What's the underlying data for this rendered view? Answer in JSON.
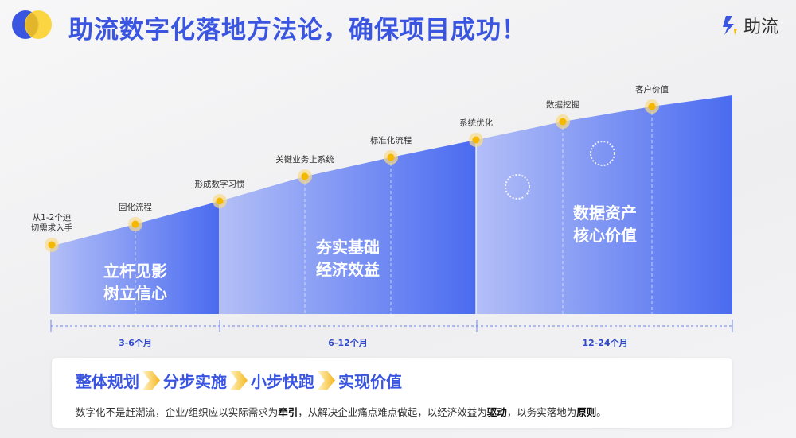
{
  "header": {
    "title": "助流数字化落地方法论，确保项目成功！",
    "brand": "助流"
  },
  "milestones": [
    {
      "label": "从1-2个迫\n切需求入手"
    },
    {
      "label": "固化流程"
    },
    {
      "label": "形成数字习惯"
    },
    {
      "label": "关键业务上系统"
    },
    {
      "label": "标准化流程"
    },
    {
      "label": "系统优化"
    },
    {
      "label": "数据挖掘"
    },
    {
      "label": "客户价值"
    }
  ],
  "phases": [
    {
      "title_line1": "立杆见影",
      "title_line2": "树立信心",
      "duration": "3-6个月"
    },
    {
      "title_line1": "夯实基础",
      "title_line2": "经济效益",
      "duration": "6-12个月"
    },
    {
      "title_line1": "数据资产",
      "title_line2": "核心价值",
      "duration": "12-24个月"
    }
  ],
  "summary": {
    "steps": [
      "整体规划",
      "分步实施",
      "小步快跑",
      "实现价值"
    ],
    "desc_1": "数字化不是赶潮流，企业/组织应以实际需求为",
    "desc_b1": "牵引",
    "desc_2": "，从解决企业痛点难点做起，以经济效益为",
    "desc_b2": "驱动",
    "desc_3": "，以务实落地为",
    "desc_b3": "原则",
    "desc_4": "。"
  },
  "colors": {
    "accent": "#3a55e0",
    "marker": "#f5b800",
    "area_light": "#b3bff7",
    "area_dark": "#3f63ee"
  }
}
